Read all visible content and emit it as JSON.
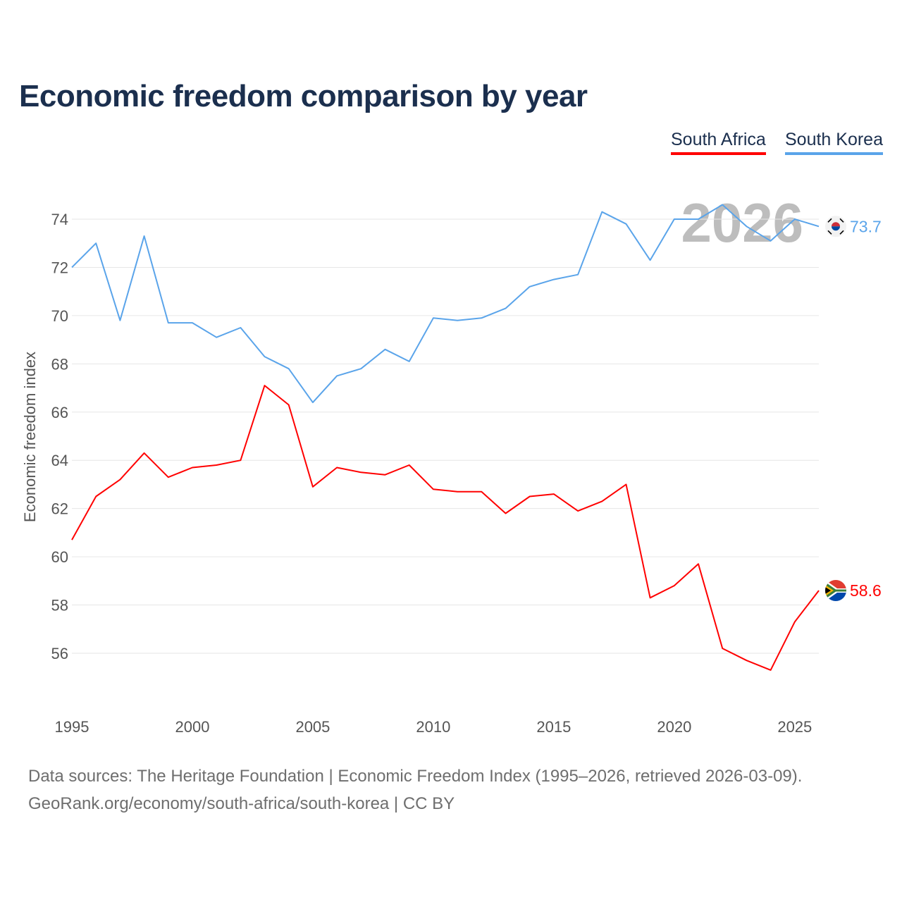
{
  "chart_data": {
    "type": "line",
    "title": "Economic freedom comparison by year",
    "ylabel": "Economic freedom index",
    "xlabel": "",
    "watermark_year": "2026",
    "ylim": [
      54,
      75
    ],
    "xlim": [
      1995,
      2026
    ],
    "yticks": [
      56,
      58,
      60,
      62,
      64,
      66,
      68,
      70,
      72,
      74
    ],
    "xticks": [
      1995,
      2000,
      2005,
      2010,
      2015,
      2020,
      2025
    ],
    "grid": true,
    "legend_position": "top-right",
    "x": [
      1995,
      1996,
      1997,
      1998,
      1999,
      2000,
      2001,
      2002,
      2003,
      2004,
      2005,
      2006,
      2007,
      2008,
      2009,
      2010,
      2011,
      2012,
      2013,
      2014,
      2015,
      2016,
      2017,
      2018,
      2019,
      2020,
      2021,
      2022,
      2023,
      2024,
      2025,
      2026
    ],
    "series": [
      {
        "name": "South Africa",
        "color": "#ff0000",
        "end_label": "58.6",
        "values": [
          60.7,
          62.5,
          63.2,
          64.3,
          63.3,
          63.7,
          63.8,
          64.0,
          67.1,
          66.3,
          62.9,
          63.7,
          63.5,
          63.4,
          63.8,
          62.8,
          62.7,
          62.7,
          61.8,
          62.5,
          62.6,
          61.9,
          62.3,
          63.0,
          58.3,
          58.8,
          59.7,
          56.2,
          55.7,
          55.3,
          57.3,
          58.6
        ]
      },
      {
        "name": "South Korea",
        "color": "#5aa4ea",
        "end_label": "73.7",
        "values": [
          72.0,
          73.0,
          69.8,
          73.3,
          69.7,
          69.7,
          69.1,
          69.5,
          68.3,
          67.8,
          66.4,
          67.5,
          67.8,
          68.6,
          68.1,
          69.9,
          69.8,
          69.9,
          70.3,
          71.2,
          71.5,
          71.7,
          74.3,
          73.8,
          72.3,
          74.0,
          74.0,
          74.6,
          73.7,
          73.1,
          74.0,
          73.7
        ]
      }
    ]
  },
  "sources": {
    "line1": "Data sources: The Heritage Foundation | Economic Freedom Index (1995–2026, retrieved 2026-03-09).",
    "line2": "GeoRank.org/economy/south-africa/south-korea | CC BY"
  }
}
